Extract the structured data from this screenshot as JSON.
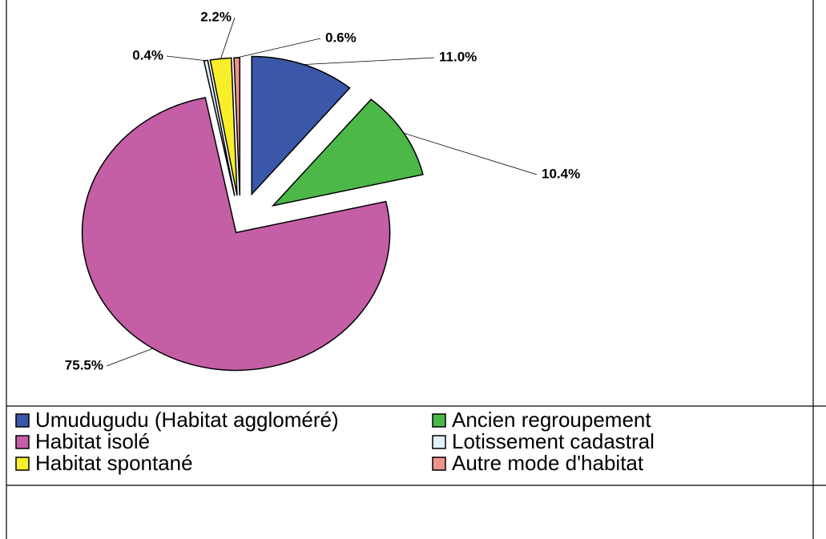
{
  "chart_data": {
    "type": "pie",
    "categories": [
      "Umudugudu (Habitat aggloméré)",
      "Ancien regroupement",
      "Habitat isolé",
      "Lotissement cadastral",
      "Habitat spontané",
      "Autre mode d'habitat"
    ],
    "values": [
      11.0,
      10.4,
      75.5,
      0.4,
      2.2,
      0.6
    ],
    "value_labels": [
      "11.0%",
      "10.4%",
      "75.5%",
      "0.4%",
      "2.2%",
      "0.6%"
    ],
    "colors": [
      "#3a57a8",
      "#4cb848",
      "#c45ea5",
      "#dff3f9",
      "#f8ee2a",
      "#f0938b"
    ],
    "legend": "bottom"
  }
}
